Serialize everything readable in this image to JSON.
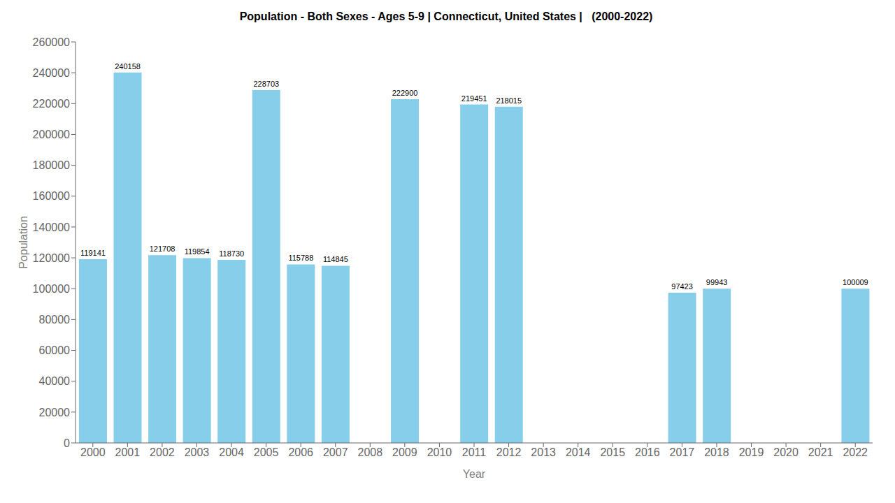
{
  "chart_data": {
    "type": "bar",
    "title": "Population - Both Sexes - Ages 5-9 | Connecticut, United States |   (2000-2022)",
    "xlabel": "Year",
    "ylabel": "Population",
    "categories": [
      "2000",
      "2001",
      "2002",
      "2003",
      "2004",
      "2005",
      "2006",
      "2007",
      "2008",
      "2009",
      "2010",
      "2011",
      "2012",
      "2013",
      "2014",
      "2015",
      "2016",
      "2017",
      "2018",
      "2019",
      "2020",
      "2021",
      "2022"
    ],
    "values": [
      119141,
      240158,
      121708,
      119854,
      118730,
      228703,
      115788,
      114845,
      0,
      222900,
      0,
      219451,
      218015,
      0,
      0,
      0,
      0,
      97423,
      99943,
      0,
      0,
      0,
      100009
    ],
    "color": "#87CEEB",
    "ylim": [
      0,
      260000
    ],
    "yticks": [
      0,
      20000,
      40000,
      60000,
      80000,
      100000,
      120000,
      140000,
      160000,
      180000,
      200000,
      220000,
      240000,
      260000
    ],
    "grid": false,
    "data_labels": true
  }
}
